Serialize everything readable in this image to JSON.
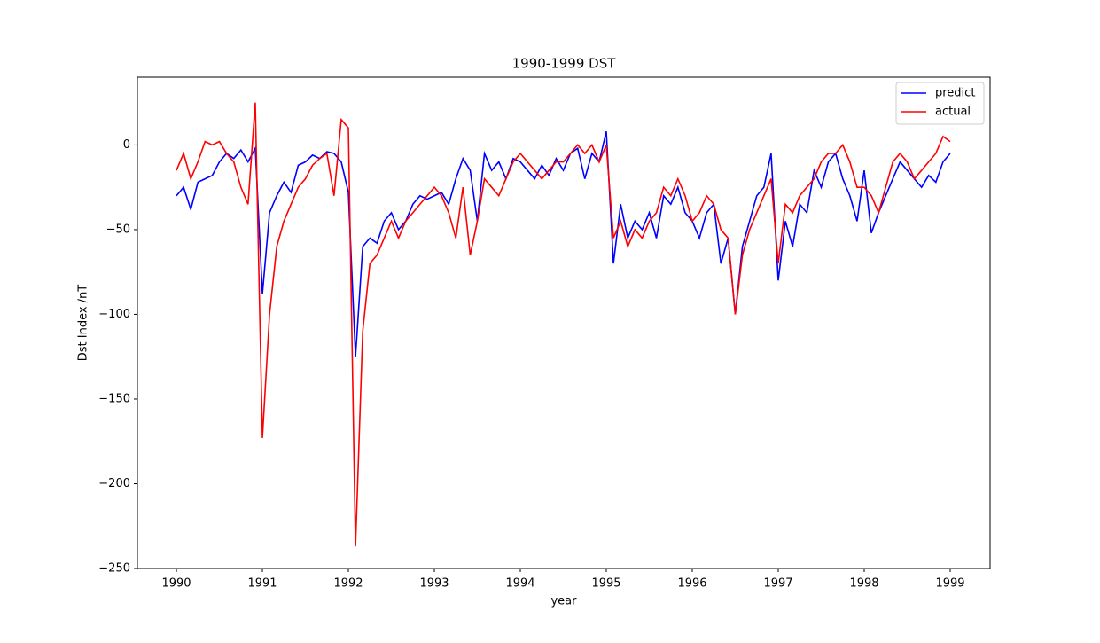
{
  "chart_data": {
    "type": "line",
    "title": "1990-1999 DST",
    "x_label": "year",
    "y_label": "Dst Index /nT",
    "x": [
      1990,
      1990.083,
      1990.167,
      1990.25,
      1990.333,
      1990.417,
      1990.5,
      1990.583,
      1990.667,
      1990.75,
      1990.833,
      1990.917,
      1991,
      1991.083,
      1991.167,
      1991.25,
      1991.333,
      1991.417,
      1991.5,
      1991.583,
      1991.667,
      1991.75,
      1991.833,
      1991.917,
      1992,
      1992.083,
      1992.167,
      1992.25,
      1992.333,
      1992.417,
      1992.5,
      1992.583,
      1992.667,
      1992.75,
      1992.833,
      1992.917,
      1993,
      1993.083,
      1993.167,
      1993.25,
      1993.333,
      1993.417,
      1993.5,
      1993.583,
      1993.667,
      1993.75,
      1993.833,
      1993.917,
      1994,
      1994.083,
      1994.167,
      1994.25,
      1994.333,
      1994.417,
      1994.5,
      1994.583,
      1994.667,
      1994.75,
      1994.833,
      1994.917,
      1995,
      1995.083,
      1995.167,
      1995.25,
      1995.333,
      1995.417,
      1995.5,
      1995.583,
      1995.667,
      1995.75,
      1995.833,
      1995.917,
      1996,
      1996.083,
      1996.167,
      1996.25,
      1996.333,
      1996.417,
      1996.5,
      1996.583,
      1996.667,
      1996.75,
      1996.833,
      1996.917,
      1997,
      1997.083,
      1997.167,
      1997.25,
      1997.333,
      1997.417,
      1997.5,
      1997.583,
      1997.667,
      1997.75,
      1997.833,
      1997.917,
      1998,
      1998.083,
      1998.167,
      1998.25,
      1998.333,
      1998.417,
      1998.5,
      1998.583,
      1998.667,
      1998.75,
      1998.833,
      1998.917,
      1999
    ],
    "series": [
      {
        "name": "predict",
        "color": "#0000ff",
        "values": [
          -30,
          -25,
          -38,
          -22,
          -20,
          -18,
          -10,
          -5,
          -8,
          -3,
          -10,
          -2,
          -88,
          -40,
          -30,
          -22,
          -28,
          -12,
          -10,
          -6,
          -8,
          -4,
          -5,
          -10,
          -28,
          -125,
          -60,
          -55,
          -58,
          -45,
          -40,
          -50,
          -45,
          -35,
          -30,
          -32,
          -30,
          -28,
          -35,
          -20,
          -8,
          -15,
          -45,
          -5,
          -15,
          -10,
          -20,
          -8,
          -10,
          -15,
          -20,
          -12,
          -18,
          -8,
          -15,
          -5,
          -2,
          -20,
          -5,
          -10,
          8,
          -70,
          -35,
          -55,
          -45,
          -50,
          -40,
          -55,
          -30,
          -35,
          -25,
          -40,
          -45,
          -55,
          -40,
          -35,
          -70,
          -55,
          -100,
          -60,
          -45,
          -30,
          -25,
          -5,
          -80,
          -45,
          -60,
          -35,
          -40,
          -15,
          -25,
          -10,
          -5,
          -20,
          -30,
          -45,
          -15,
          -52,
          -40,
          -30,
          -20,
          -10,
          -15,
          -20,
          -25,
          -18,
          -22,
          -10,
          -5
        ]
      },
      {
        "name": "actual",
        "color": "#ff0000",
        "values": [
          -15,
          -5,
          -20,
          -10,
          2,
          0,
          2,
          -5,
          -10,
          -25,
          -35,
          25,
          -173,
          -100,
          -60,
          -45,
          -35,
          -25,
          -20,
          -12,
          -8,
          -5,
          -30,
          15,
          10,
          -237,
          -110,
          -70,
          -65,
          -55,
          -45,
          -55,
          -45,
          -40,
          -35,
          -30,
          -25,
          -30,
          -40,
          -55,
          -25,
          -65,
          -45,
          -20,
          -25,
          -30,
          -20,
          -10,
          -5,
          -10,
          -15,
          -20,
          -15,
          -10,
          -10,
          -5,
          0,
          -5,
          0,
          -10,
          0,
          -55,
          -45,
          -60,
          -50,
          -55,
          -45,
          -40,
          -25,
          -30,
          -20,
          -30,
          -45,
          -40,
          -30,
          -35,
          -50,
          -55,
          -100,
          -65,
          -50,
          -40,
          -30,
          -20,
          -70,
          -35,
          -40,
          -30,
          -25,
          -20,
          -10,
          -5,
          -5,
          0,
          -10,
          -25,
          -25,
          -30,
          -40,
          -25,
          -10,
          -5,
          -10,
          -20,
          -15,
          -10,
          -5,
          5,
          2
        ]
      }
    ],
    "xlim": [
      1989.546,
      1999.464
    ],
    "xticks": [
      1990,
      1991,
      1992,
      1993,
      1994,
      1995,
      1996,
      1997,
      1998,
      1999
    ],
    "ylim": [
      -250,
      40
    ],
    "yticks": [
      {
        "value": -250,
        "label": "−250"
      },
      {
        "value": -200,
        "label": "−200"
      },
      {
        "value": -150,
        "label": "−150"
      },
      {
        "value": -100,
        "label": "−100"
      },
      {
        "value": -50,
        "label": "−50"
      },
      0
    ],
    "legend": "upper right"
  }
}
